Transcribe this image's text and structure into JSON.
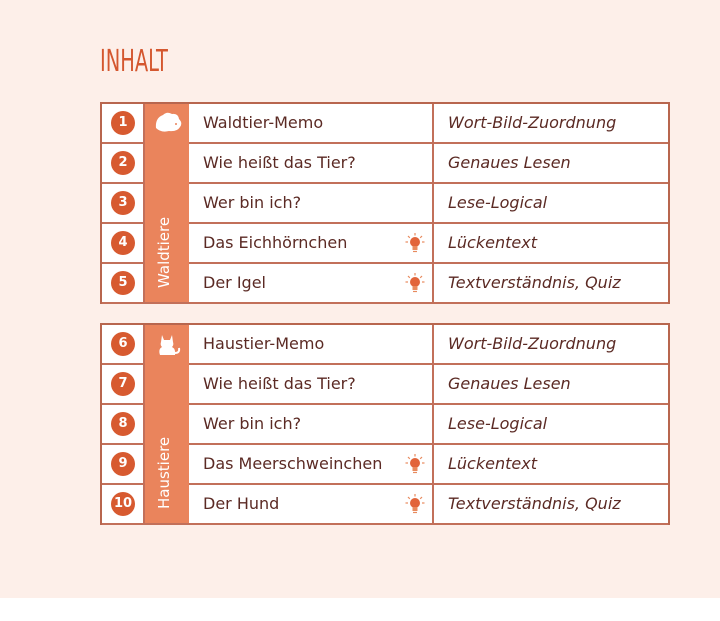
{
  "title": "INHALT",
  "colors": {
    "accent": "#d75a30",
    "band": "#ea845c",
    "border": "#b8664e",
    "text": "#5b2a24",
    "background": "#fdefe9"
  },
  "sections": [
    {
      "category": "Waldtiere",
      "icon": "hedgehog-icon",
      "rows": [
        {
          "number": "1",
          "title": "Waldtier-Memo",
          "type": "Wort-Bild-Zuordnung",
          "bulb": false
        },
        {
          "number": "2",
          "title": "Wie heißt das Tier?",
          "type": "Genaues Lesen",
          "bulb": false
        },
        {
          "number": "3",
          "title": "Wer bin ich?",
          "type": "Lese-Logical",
          "bulb": false
        },
        {
          "number": "4",
          "title": "Das Eichhörnchen",
          "type": "Lückentext",
          "bulb": true
        },
        {
          "number": "5",
          "title": "Der Igel",
          "type": "Textverständnis, Quiz",
          "bulb": true
        }
      ]
    },
    {
      "category": "Haustiere",
      "icon": "cat-icon",
      "rows": [
        {
          "number": "6",
          "title": "Haustier-Memo",
          "type": "Wort-Bild-Zuordnung",
          "bulb": false
        },
        {
          "number": "7",
          "title": "Wie heißt das Tier?",
          "type": "Genaues Lesen",
          "bulb": false
        },
        {
          "number": "8",
          "title": "Wer bin ich?",
          "type": "Lese-Logical",
          "bulb": false
        },
        {
          "number": "9",
          "title": "Das Meerschweinchen",
          "type": "Lückentext",
          "bulb": true
        },
        {
          "number": "10",
          "title": "Der Hund",
          "type": "Textverständnis, Quiz",
          "bulb": true
        }
      ]
    }
  ]
}
